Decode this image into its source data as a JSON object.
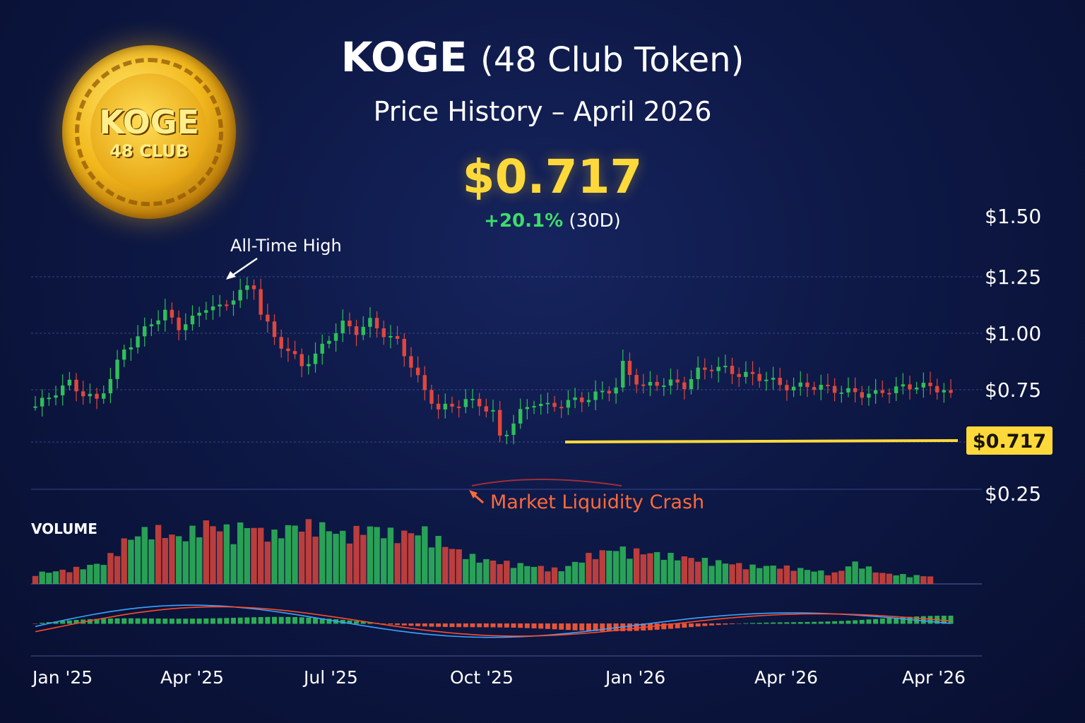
{
  "header": {
    "title_bold": "KOGE",
    "title_rest": "(48 Club Token)",
    "subtitle": "Price History – April 2026",
    "price": "$0.717",
    "change_pct": "+20.1%",
    "change_period": "(30D)"
  },
  "coin": {
    "title": "KOGE",
    "subtitle": "48 CLUB"
  },
  "colors": {
    "up": "#2fbf5a",
    "down": "#e0473c",
    "accent": "#ffd93a",
    "macd_line": "#3aa4ff",
    "signal_line": "#ff4a2a"
  },
  "chart_data": {
    "type": "candlestick",
    "title": "KOGE (48 Club Token)",
    "subtitle": "Price History – April 2026",
    "y_tick_labels": [
      "$1.50",
      "$1.25",
      "$1.00",
      "$0.75",
      "$0.25"
    ],
    "x_tick_labels": [
      "Jan '25",
      "Apr '25",
      "Jul '25",
      "Oct '25",
      "Jan '26",
      "Apr '26",
      "Apr '26"
    ],
    "ylim": [
      0.25,
      1.5
    ],
    "current_price_label": "$0.717",
    "current_price_value": 0.717,
    "annotations": {
      "ath": "All-Time High",
      "crash": "Market Liquidity Crash"
    },
    "volume_label": "VOLUME",
    "close_path": [
      [
        0,
        0.67
      ],
      [
        3,
        0.74
      ],
      [
        5,
        0.78
      ],
      [
        7,
        0.73
      ],
      [
        9,
        0.7
      ],
      [
        11,
        0.8
      ],
      [
        13,
        0.93
      ],
      [
        15,
        0.98
      ],
      [
        17,
        1.05
      ],
      [
        19,
        1.09
      ],
      [
        21,
        1.03
      ],
      [
        23,
        1.06
      ],
      [
        25,
        1.12
      ],
      [
        27,
        1.11
      ],
      [
        29,
        1.16
      ],
      [
        31,
        1.2
      ],
      [
        32,
        1.21
      ],
      [
        33,
        1.09
      ],
      [
        35,
        0.98
      ],
      [
        37,
        0.92
      ],
      [
        39,
        0.86
      ],
      [
        41,
        0.9
      ],
      [
        43,
        0.98
      ],
      [
        45,
        1.04
      ],
      [
        47,
        1.01
      ],
      [
        49,
        1.05
      ],
      [
        51,
        1.0
      ],
      [
        53,
        0.96
      ],
      [
        55,
        0.86
      ],
      [
        57,
        0.74
      ],
      [
        59,
        0.66
      ],
      [
        61,
        0.67
      ],
      [
        63,
        0.7
      ],
      [
        65,
        0.68
      ],
      [
        67,
        0.64
      ],
      [
        68,
        0.52
      ],
      [
        69,
        0.55
      ],
      [
        71,
        0.64
      ],
      [
        73,
        0.69
      ],
      [
        75,
        0.67
      ],
      [
        77,
        0.68
      ],
      [
        79,
        0.7
      ],
      [
        81,
        0.71
      ],
      [
        83,
        0.74
      ],
      [
        85,
        0.76
      ],
      [
        86,
        0.86
      ],
      [
        87,
        0.82
      ],
      [
        89,
        0.76
      ],
      [
        91,
        0.78
      ],
      [
        93,
        0.78
      ],
      [
        95,
        0.77
      ],
      [
        97,
        0.83
      ],
      [
        99,
        0.85
      ],
      [
        101,
        0.84
      ],
      [
        103,
        0.82
      ],
      [
        105,
        0.81
      ],
      [
        107,
        0.8
      ],
      [
        109,
        0.77
      ],
      [
        111,
        0.76
      ],
      [
        113,
        0.77
      ],
      [
        115,
        0.76
      ],
      [
        117,
        0.75
      ],
      [
        119,
        0.74
      ],
      [
        121,
        0.73
      ],
      [
        123,
        0.73
      ],
      [
        125,
        0.75
      ],
      [
        127,
        0.76
      ],
      [
        129,
        0.77
      ],
      [
        131,
        0.76
      ],
      [
        133,
        0.75
      ],
      [
        134,
        0.717
      ]
    ],
    "volume_path": [
      [
        0,
        15
      ],
      [
        5,
        20
      ],
      [
        10,
        30
      ],
      [
        13,
        60
      ],
      [
        17,
        80
      ],
      [
        21,
        65
      ],
      [
        25,
        85
      ],
      [
        29,
        75
      ],
      [
        31,
        85
      ],
      [
        33,
        75
      ],
      [
        35,
        70
      ],
      [
        37,
        80
      ],
      [
        41,
        85
      ],
      [
        45,
        70
      ],
      [
        49,
        80
      ],
      [
        53,
        70
      ],
      [
        57,
        75
      ],
      [
        61,
        50
      ],
      [
        65,
        35
      ],
      [
        69,
        30
      ],
      [
        73,
        25
      ],
      [
        77,
        20
      ],
      [
        81,
        40
      ],
      [
        85,
        50
      ],
      [
        89,
        45
      ],
      [
        93,
        40
      ],
      [
        97,
        35
      ],
      [
        101,
        30
      ],
      [
        105,
        25
      ],
      [
        109,
        25
      ],
      [
        113,
        20
      ],
      [
        117,
        15
      ],
      [
        120,
        30
      ],
      [
        124,
        15
      ],
      [
        128,
        12
      ],
      [
        134,
        10
      ]
    ]
  }
}
